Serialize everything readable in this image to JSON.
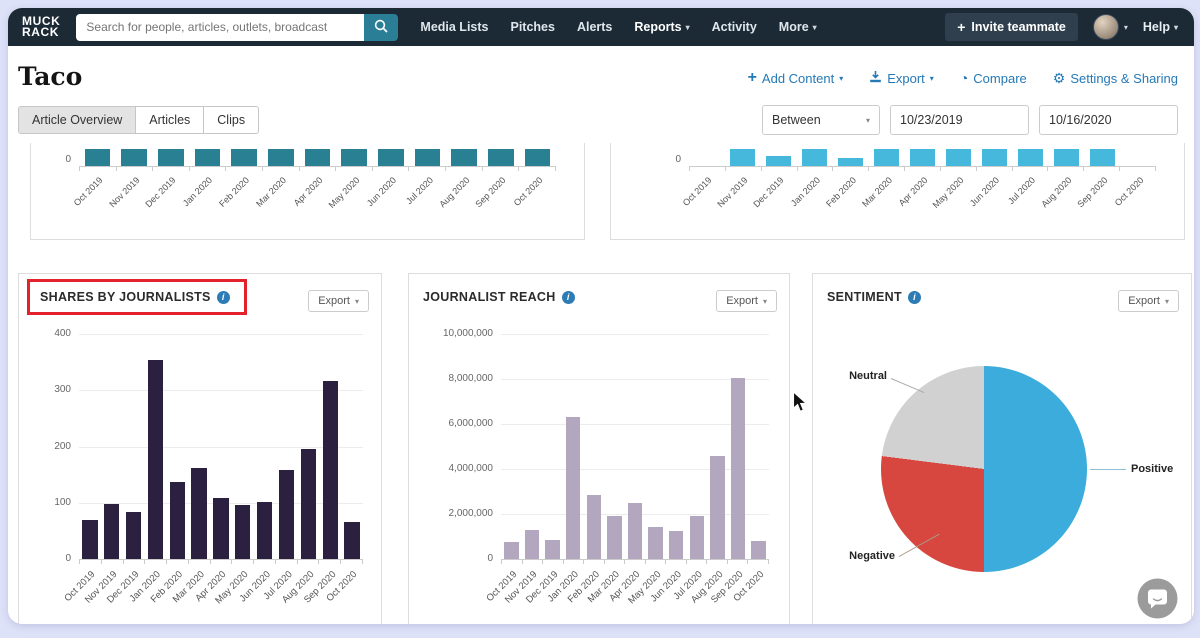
{
  "colors": {
    "navbar_bg": "#1c2a36",
    "accent_blue": "#2579b5",
    "search_button_teal": "#2a7f96",
    "teal_bar": "#2a8093",
    "lightblue_bar": "#45b8dc",
    "darkpurple_bar": "#2b2040",
    "mauve_bar": "#b3a6bf",
    "pie_positive": "#3bacdb",
    "pie_negative": "#d7473f",
    "pie_neutral": "#d1d1d1",
    "highlight_red": "#e4222b"
  },
  "icons": {
    "caret": "▾",
    "plus": "+",
    "pie": "◔",
    "gear": "⚙",
    "info": "i"
  },
  "navbar": {
    "logo": [
      "MUCK",
      "RACK"
    ],
    "search_placeholder": "Search for people, articles, outlets, broadcast",
    "items": [
      {
        "label": "Media Lists",
        "caret": false,
        "active": false
      },
      {
        "label": "Pitches",
        "caret": false,
        "active": false
      },
      {
        "label": "Alerts",
        "caret": false,
        "active": false
      },
      {
        "label": "Reports",
        "caret": true,
        "active": true
      },
      {
        "label": "Activity",
        "caret": false,
        "active": false
      },
      {
        "label": "More",
        "caret": true,
        "active": false
      }
    ],
    "invite_label": "Invite teammate",
    "help_label": "Help"
  },
  "header": {
    "title": "Taco",
    "actions": [
      {
        "label": "Add Content",
        "icon": "plus-icon",
        "caret": true
      },
      {
        "label": "Export",
        "icon": "download-icon",
        "caret": true
      },
      {
        "label": "Compare",
        "icon": "pie-icon",
        "caret": false
      },
      {
        "label": "Settings & Sharing",
        "icon": "gear-icon",
        "caret": false
      }
    ]
  },
  "tabs": [
    {
      "label": "Article Overview",
      "active": true
    },
    {
      "label": "Articles",
      "active": false
    },
    {
      "label": "Clips",
      "active": false
    }
  ],
  "date_filter": {
    "mode": "Between",
    "start_date": "10/23/2019",
    "end_date": "10/16/2020"
  },
  "panels": {
    "shares": {
      "title": "SHARES BY JOURNALISTS",
      "export_label": "Export",
      "highlighted": true
    },
    "reach": {
      "title": "JOURNALIST REACH",
      "export_label": "Export",
      "highlighted": false
    },
    "sentiment": {
      "title": "SENTIMENT",
      "export_label": "Export",
      "highlighted": false
    }
  },
  "chart_data": [
    {
      "type": "bar",
      "mount": "chart-top-left",
      "clipped_top": true,
      "categories": [
        "Oct 2019",
        "Nov 2019",
        "Dec 2019",
        "Jan 2020",
        "Feb 2020",
        "Mar 2020",
        "Apr 2020",
        "May 2020",
        "Jun 2020",
        "Jul 2020",
        "Aug 2020",
        "Sep 2020",
        "Oct 2020"
      ],
      "visible_fraction": [
        1,
        1,
        1,
        1,
        1,
        1,
        1,
        1,
        1,
        1,
        1,
        1,
        1
      ],
      "color": "#2a8093",
      "y_zero_label": "0",
      "note": "panel scrolled: only bar bases above 0-axis visible"
    },
    {
      "type": "bar",
      "mount": "chart-top-right",
      "clipped_top": true,
      "categories": [
        "Oct 2019",
        "Nov 2019",
        "Dec 2019",
        "Jan 2020",
        "Feb 2020",
        "Mar 2020",
        "Apr 2020",
        "May 2020",
        "Jun 2020",
        "Jul 2020",
        "Aug 2020",
        "Sep 2020",
        "Oct 2020"
      ],
      "visible_fraction": [
        0,
        1,
        0.58,
        1,
        0.48,
        1,
        1,
        1,
        1,
        1,
        1,
        1,
        0
      ],
      "color": "#45b8dc",
      "y_zero_label": "0",
      "note": "panel scrolled: only bar bases above 0-axis visible"
    },
    {
      "type": "bar",
      "mount": "chart-shares",
      "title": "SHARES BY JOURNALISTS",
      "categories": [
        "Oct 2019",
        "Nov 2019",
        "Dec 2019",
        "Jan 2020",
        "Feb 2020",
        "Mar 2020",
        "Apr 2020",
        "May 2020",
        "Jun 2020",
        "Jul 2020",
        "Aug 2020",
        "Sep 2020",
        "Oct 2020"
      ],
      "values": [
        69,
        98,
        84,
        353,
        137,
        162,
        108,
        96,
        101,
        158,
        195,
        317,
        66
      ],
      "ylim": [
        0,
        400
      ],
      "yticks": [
        0,
        100,
        200,
        300,
        400
      ],
      "ytick_labels": [
        "0",
        "100",
        "200",
        "300",
        "400"
      ],
      "color": "#2b2040",
      "grid": true
    },
    {
      "type": "bar",
      "mount": "chart-reach",
      "title": "JOURNALIST REACH",
      "categories": [
        "Oct 2019",
        "Nov 2019",
        "Dec 2019",
        "Jan 2020",
        "Feb 2020",
        "Mar 2020",
        "Apr 2020",
        "May 2020",
        "Jun 2020",
        "Jul 2020",
        "Aug 2020",
        "Sep 2020",
        "Oct 2020"
      ],
      "values": [
        750000,
        1270000,
        840000,
        6290000,
        2860000,
        1930000,
        2510000,
        1410000,
        1230000,
        1930000,
        4570000,
        8050000,
        790000
      ],
      "ylim": [
        0,
        10000000
      ],
      "yticks": [
        0,
        2000000,
        4000000,
        6000000,
        8000000,
        10000000
      ],
      "ytick_labels": [
        "0",
        "2,000,000",
        "4,000,000",
        "6,000,000",
        "8,000,000",
        "10,000,000"
      ],
      "color": "#b3a6bf",
      "grid": true
    },
    {
      "type": "pie",
      "mount": "chart-sentiment",
      "title": "SENTIMENT",
      "slices": [
        {
          "label": "Positive",
          "value": 50,
          "color": "#3bacdb"
        },
        {
          "label": "Negative",
          "value": 27,
          "color": "#d7473f"
        },
        {
          "label": "Neutral",
          "value": 23,
          "color": "#d1d1d1"
        }
      ],
      "legend_position": "callout-labels"
    }
  ]
}
